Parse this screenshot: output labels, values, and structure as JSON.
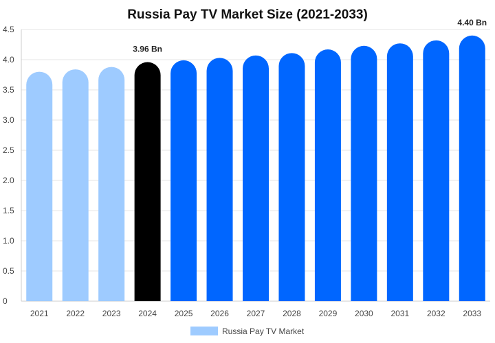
{
  "chart_data": {
    "type": "bar",
    "title": "Russia Pay TV Market Size (2021-2033)",
    "xlabel": "",
    "ylabel": "",
    "categories": [
      "2021",
      "2022",
      "2023",
      "2024",
      "2025",
      "2026",
      "2027",
      "2028",
      "2029",
      "2030",
      "2031",
      "2032",
      "2033"
    ],
    "series": [
      {
        "name": "Russia Pay TV Market",
        "values": [
          3.8,
          3.84,
          3.88,
          3.96,
          3.99,
          4.03,
          4.07,
          4.11,
          4.17,
          4.23,
          4.27,
          4.32,
          4.4
        ]
      }
    ],
    "ylim": [
      0,
      4.5
    ],
    "yticks": [
      "0",
      "0.5",
      "1.0",
      "1.5",
      "2.0",
      "2.5",
      "3.0",
      "3.5",
      "4.0",
      "4.5"
    ],
    "data_labels": [
      {
        "category": "2024",
        "text": "3.96 Bn"
      },
      {
        "category": "2033",
        "text": "4.40 Bn"
      }
    ],
    "bar_colors": {
      "historical": "#9ecbff",
      "base_year": "#000000",
      "forecast": "#0066ff"
    },
    "historical_years": [
      "2021",
      "2022",
      "2023"
    ],
    "base_year": "2024",
    "legend": {
      "position": "bottom",
      "label": "Russia Pay TV Market",
      "swatch_color": "#9ecbff"
    },
    "grid": true
  }
}
